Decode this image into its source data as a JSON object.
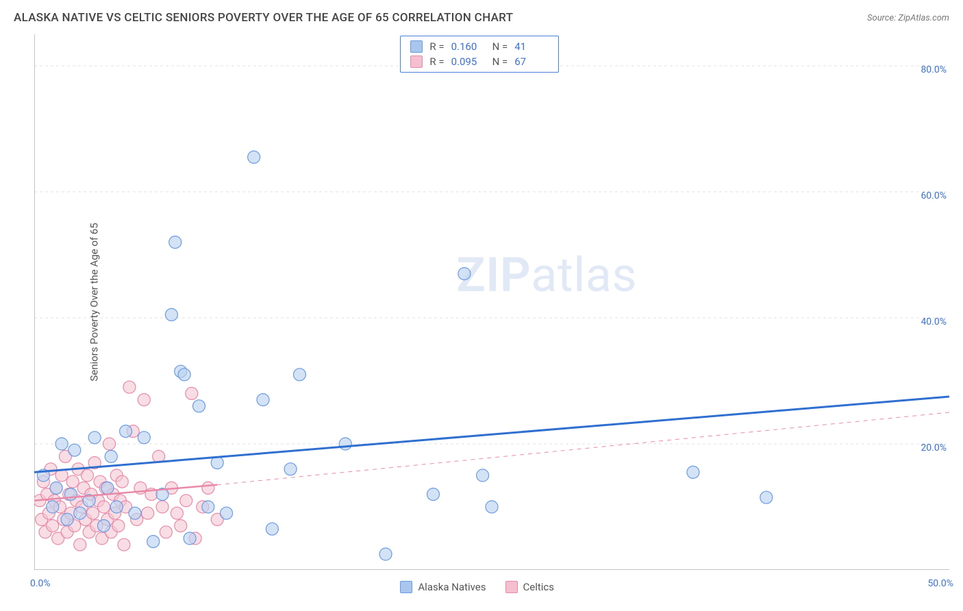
{
  "title": "ALASKA NATIVE VS CELTIC SENIORS POVERTY OVER THE AGE OF 65 CORRELATION CHART",
  "source": "Source: ZipAtlas.com",
  "y_axis_label": "Seniors Poverty Over the Age of 65",
  "watermark": {
    "zip": "ZIP",
    "atlas": "atlas"
  },
  "legend_top": {
    "rows": [
      {
        "swatch_fill": "#a9c6ef",
        "swatch_stroke": "#6a9ae2",
        "r_label": "R =",
        "r_value": "0.160",
        "n_label": "N =",
        "n_value": "41"
      },
      {
        "swatch_fill": "#f6bfcf",
        "swatch_stroke": "#e889a8",
        "r_label": "R =",
        "r_value": "0.095",
        "n_label": "N =",
        "n_value": "67"
      }
    ]
  },
  "bottom_legend": [
    {
      "swatch_fill": "#a9c6ef",
      "swatch_stroke": "#6a9ae2",
      "label": "Alaska Natives"
    },
    {
      "swatch_fill": "#f6bfcf",
      "swatch_stroke": "#e889a8",
      "label": "Celtics"
    }
  ],
  "chart": {
    "type": "scatter",
    "background_color": "#ffffff",
    "grid_color": "#e2e2e2",
    "axis_color": "#888888",
    "xlim": [
      0,
      50
    ],
    "ylim": [
      0,
      85
    ],
    "x_ticks": [
      0,
      5,
      10,
      15,
      20,
      25,
      30,
      35,
      40,
      45,
      50
    ],
    "y_gridlines": [
      20,
      40,
      60,
      80
    ],
    "y_tick_labels": [
      "20.0%",
      "40.0%",
      "60.0%",
      "80.0%"
    ],
    "x_origin_label": "0.0%",
    "x_max_label": "50.0%",
    "marker_radius": 9,
    "marker_stroke_width": 1.2,
    "series": [
      {
        "name": "Alaska Natives",
        "fill": "#bcd3f0",
        "stroke": "#6a9ae2",
        "fill_opacity": 0.65,
        "points": [
          [
            0.5,
            15
          ],
          [
            1,
            10
          ],
          [
            1.2,
            13
          ],
          [
            1.5,
            20
          ],
          [
            1.8,
            8
          ],
          [
            2,
            12
          ],
          [
            2.2,
            19
          ],
          [
            2.5,
            9
          ],
          [
            3,
            11
          ],
          [
            3.3,
            21
          ],
          [
            3.8,
            7
          ],
          [
            4,
            13
          ],
          [
            4.2,
            18
          ],
          [
            4.5,
            10
          ],
          [
            5,
            22
          ],
          [
            5.5,
            9
          ],
          [
            6,
            21
          ],
          [
            6.5,
            4.5
          ],
          [
            7,
            12
          ],
          [
            7.5,
            40.5
          ],
          [
            7.7,
            52
          ],
          [
            8,
            31.5
          ],
          [
            8.2,
            31
          ],
          [
            8.5,
            5
          ],
          [
            9,
            26
          ],
          [
            9.5,
            10
          ],
          [
            10,
            17
          ],
          [
            10.5,
            9
          ],
          [
            12,
            65.5
          ],
          [
            12.5,
            27
          ],
          [
            13,
            6.5
          ],
          [
            14,
            16
          ],
          [
            14.5,
            31
          ],
          [
            17,
            20
          ],
          [
            19.2,
            2.5
          ],
          [
            21.8,
            12
          ],
          [
            23.5,
            47
          ],
          [
            24.5,
            15
          ],
          [
            25,
            10
          ],
          [
            36,
            15.5
          ],
          [
            40,
            11.5
          ]
        ],
        "trend": {
          "color": "#2f6fd0",
          "width": 3,
          "x1": 0,
          "y1": 15.5,
          "x2": 50,
          "y2": 27.5
        }
      },
      {
        "name": "Celtics",
        "fill": "#f3c6d4",
        "stroke": "#e889a8",
        "fill_opacity": 0.6,
        "points": [
          [
            0.3,
            11
          ],
          [
            0.4,
            8
          ],
          [
            0.5,
            14
          ],
          [
            0.6,
            6
          ],
          [
            0.7,
            12
          ],
          [
            0.8,
            9
          ],
          [
            0.9,
            16
          ],
          [
            1,
            7
          ],
          [
            1.1,
            11
          ],
          [
            1.2,
            13
          ],
          [
            1.3,
            5
          ],
          [
            1.4,
            10
          ],
          [
            1.5,
            15
          ],
          [
            1.6,
            8
          ],
          [
            1.7,
            18
          ],
          [
            1.8,
            6
          ],
          [
            1.9,
            12
          ],
          [
            2,
            9
          ],
          [
            2.1,
            14
          ],
          [
            2.2,
            7
          ],
          [
            2.3,
            11
          ],
          [
            2.4,
            16
          ],
          [
            2.5,
            4
          ],
          [
            2.6,
            10
          ],
          [
            2.7,
            13
          ],
          [
            2.8,
            8
          ],
          [
            2.9,
            15
          ],
          [
            3,
            6
          ],
          [
            3.1,
            12
          ],
          [
            3.2,
            9
          ],
          [
            3.3,
            17
          ],
          [
            3.4,
            7
          ],
          [
            3.5,
            11
          ],
          [
            3.6,
            14
          ],
          [
            3.7,
            5
          ],
          [
            3.8,
            10
          ],
          [
            3.9,
            13
          ],
          [
            4,
            8
          ],
          [
            4.1,
            20
          ],
          [
            4.2,
            6
          ],
          [
            4.3,
            12
          ],
          [
            4.4,
            9
          ],
          [
            4.5,
            15
          ],
          [
            4.6,
            7
          ],
          [
            4.7,
            11
          ],
          [
            4.8,
            14
          ],
          [
            4.9,
            4
          ],
          [
            5,
            10
          ],
          [
            5.2,
            29
          ],
          [
            5.4,
            22
          ],
          [
            5.6,
            8
          ],
          [
            5.8,
            13
          ],
          [
            6,
            27
          ],
          [
            6.2,
            9
          ],
          [
            6.4,
            12
          ],
          [
            6.8,
            18
          ],
          [
            7,
            10
          ],
          [
            7.2,
            6
          ],
          [
            7.5,
            13
          ],
          [
            7.8,
            9
          ],
          [
            8,
            7
          ],
          [
            8.3,
            11
          ],
          [
            8.6,
            28
          ],
          [
            8.8,
            5
          ],
          [
            9.2,
            10
          ],
          [
            9.5,
            13
          ],
          [
            10,
            8
          ]
        ],
        "trend": {
          "color": "#e889a8",
          "width": 2.5,
          "x1": 0,
          "y1": 11,
          "x2_solid": 10,
          "y2_solid": 13.5,
          "x2": 50,
          "y2": 25
        }
      }
    ]
  }
}
